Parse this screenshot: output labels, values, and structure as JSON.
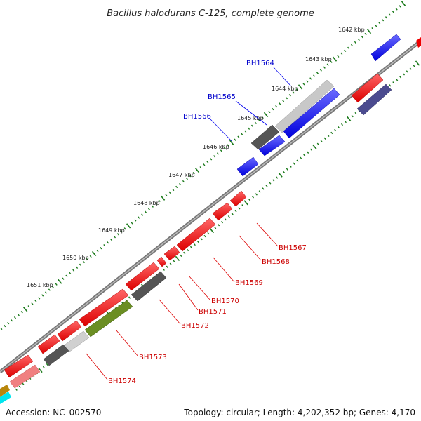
{
  "title": "Bacillus halodurans C-125, complete genome",
  "footer": {
    "accession": "Accession: NC_002570",
    "summary": "Topology: circular; Length: 4,202,352 bp; Genes: 4,170"
  },
  "colors": {
    "forward_gene": "#0000ee",
    "reverse_gene": "#ee0000",
    "backbone": "#888888",
    "tick": "#1a7a1a",
    "dark_gray_feature": "#555555",
    "light_gray_feature": "#cccccc",
    "olive_feature": "#6b8e23",
    "indigo_feature": "#4b4b8f",
    "pink_feature": "#f08080",
    "cyan_feature": "#00e5ee"
  },
  "kbp_labels": [
    "1642 kbp",
    "1643 kbp",
    "1644 kbp",
    "1645 kbp",
    "1646 kbp",
    "1647 kbp",
    "1648 kbp",
    "1649 kbp",
    "1650 kbp",
    "1651 kbp"
  ],
  "forward_labels": [
    "BH1564",
    "BH1565",
    "BH1566"
  ],
  "reverse_labels": [
    "BH1567",
    "BH1568",
    "BH1569",
    "BH1570",
    "BH1571",
    "BH1572",
    "BH1573",
    "BH1574"
  ]
}
